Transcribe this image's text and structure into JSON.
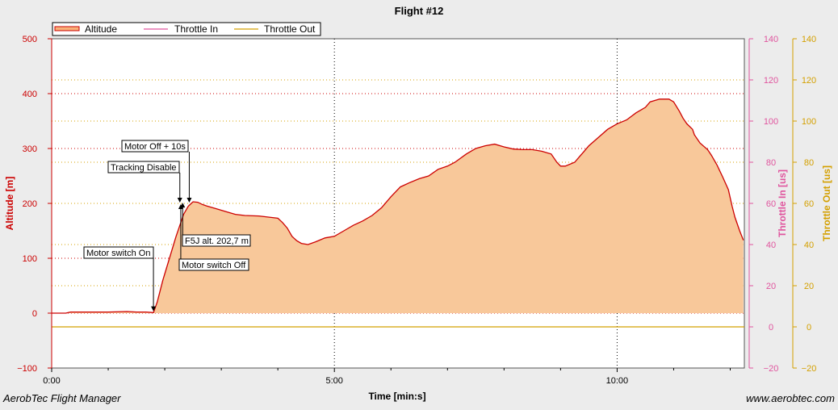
{
  "footer": {
    "left": "AerobTec Flight Manager",
    "right": "www.aerobtec.com"
  },
  "chart_data": {
    "type": "area",
    "title": "Flight #12",
    "xlabel": "Time [min:s]",
    "x_ticks": [
      "0:00",
      "5:00",
      "10:00"
    ],
    "xlim_seconds": [
      0,
      735
    ],
    "axes": {
      "altitude": {
        "label": "Altitude [m]",
        "ylim": [
          -100,
          500
        ],
        "ticks": [
          "500",
          "400",
          "300",
          "200",
          "100",
          "0",
          "−100"
        ],
        "color": "#cc0000"
      },
      "throttle_in": {
        "label": "Throttle In [us]",
        "ylim": [
          -20,
          140
        ],
        "ticks": [
          "140",
          "120",
          "100",
          "80",
          "60",
          "40",
          "20",
          "0",
          "−20"
        ],
        "color": "#e0559e"
      },
      "throttle_out": {
        "label": "Throttle Out [us]",
        "ylim": [
          -20,
          140
        ],
        "ticks": [
          "140",
          "120",
          "100",
          "80",
          "60",
          "40",
          "20",
          "0",
          "−20"
        ],
        "color": "#d4a000"
      }
    },
    "legend": {
      "placement": "top-left",
      "entries": [
        "Altitude",
        "Throttle In",
        "Throttle Out"
      ]
    },
    "series": [
      {
        "name": "Altitude",
        "axis": "altitude",
        "color": "#cc0000",
        "fill": "#f8c89a",
        "points": [
          [
            0,
            0
          ],
          [
            15,
            0
          ],
          [
            20,
            2
          ],
          [
            40,
            2
          ],
          [
            60,
            2
          ],
          [
            80,
            3
          ],
          [
            90,
            2
          ],
          [
            100,
            2
          ],
          [
            108,
            1
          ],
          [
            112,
            20
          ],
          [
            118,
            60
          ],
          [
            125,
            100
          ],
          [
            132,
            140
          ],
          [
            140,
            180
          ],
          [
            145,
            195
          ],
          [
            150,
            203
          ],
          [
            155,
            202
          ],
          [
            160,
            198
          ],
          [
            165,
            195
          ],
          [
            175,
            190
          ],
          [
            185,
            185
          ],
          [
            195,
            180
          ],
          [
            205,
            178
          ],
          [
            220,
            177
          ],
          [
            230,
            175
          ],
          [
            240,
            173
          ],
          [
            245,
            165
          ],
          [
            250,
            155
          ],
          [
            255,
            140
          ],
          [
            260,
            132
          ],
          [
            265,
            127
          ],
          [
            272,
            125
          ],
          [
            280,
            130
          ],
          [
            290,
            137
          ],
          [
            300,
            140
          ],
          [
            310,
            150
          ],
          [
            320,
            160
          ],
          [
            330,
            168
          ],
          [
            340,
            178
          ],
          [
            350,
            192
          ],
          [
            360,
            212
          ],
          [
            370,
            230
          ],
          [
            380,
            238
          ],
          [
            390,
            245
          ],
          [
            400,
            250
          ],
          [
            410,
            262
          ],
          [
            420,
            268
          ],
          [
            428,
            275
          ],
          [
            440,
            290
          ],
          [
            450,
            300
          ],
          [
            460,
            305
          ],
          [
            470,
            308
          ],
          [
            480,
            303
          ],
          [
            490,
            299
          ],
          [
            500,
            298
          ],
          [
            510,
            298
          ],
          [
            520,
            295
          ],
          [
            530,
            290
          ],
          [
            536,
            275
          ],
          [
            540,
            268
          ],
          [
            545,
            268
          ],
          [
            555,
            275
          ],
          [
            560,
            285
          ],
          [
            565,
            295
          ],
          [
            570,
            305
          ],
          [
            580,
            320
          ],
          [
            590,
            335
          ],
          [
            600,
            345
          ],
          [
            610,
            352
          ],
          [
            620,
            365
          ],
          [
            630,
            375
          ],
          [
            635,
            385
          ],
          [
            645,
            390
          ],
          [
            655,
            390
          ],
          [
            660,
            385
          ],
          [
            666,
            368
          ],
          [
            670,
            355
          ],
          [
            674,
            345
          ],
          [
            680,
            335
          ],
          [
            682,
            325
          ],
          [
            688,
            310
          ],
          [
            696,
            298
          ],
          [
            700,
            288
          ],
          [
            706,
            270
          ],
          [
            712,
            248
          ],
          [
            718,
            225
          ],
          [
            722,
            195
          ],
          [
            725,
            175
          ],
          [
            730,
            150
          ],
          [
            734,
            133
          ],
          [
            738,
            118
          ],
          [
            742,
            100
          ],
          [
            748,
            85
          ],
          [
            752,
            68
          ],
          [
            756,
            55
          ],
          [
            760,
            35
          ],
          [
            762,
            20
          ],
          [
            765,
            5
          ],
          [
            768,
            2
          ],
          [
            772,
            0
          ],
          [
            778,
            0
          ],
          [
            820,
            0
          ],
          [
            833,
            0
          ]
        ]
      },
      {
        "name": "Throttle In",
        "axis": "throttle_in",
        "color": "#e0559e",
        "points": []
      },
      {
        "name": "Throttle Out",
        "axis": "throttle_out",
        "color": "#d4a000",
        "points": [
          [
            0,
            0
          ],
          [
            833,
            0
          ]
        ]
      }
    ],
    "annotations": [
      {
        "label": "Motor switch On",
        "x": 108,
        "y": 2
      },
      {
        "label": "Tracking Disable",
        "x": 136,
        "y": 200
      },
      {
        "label": "Motor Off + 10s",
        "x": 146,
        "y": 200
      },
      {
        "label": "F5J alt. 202,7 m",
        "x": 139,
        "y": 202.7
      },
      {
        "label": "Motor switch Off",
        "x": 137,
        "y": 200
      }
    ]
  }
}
